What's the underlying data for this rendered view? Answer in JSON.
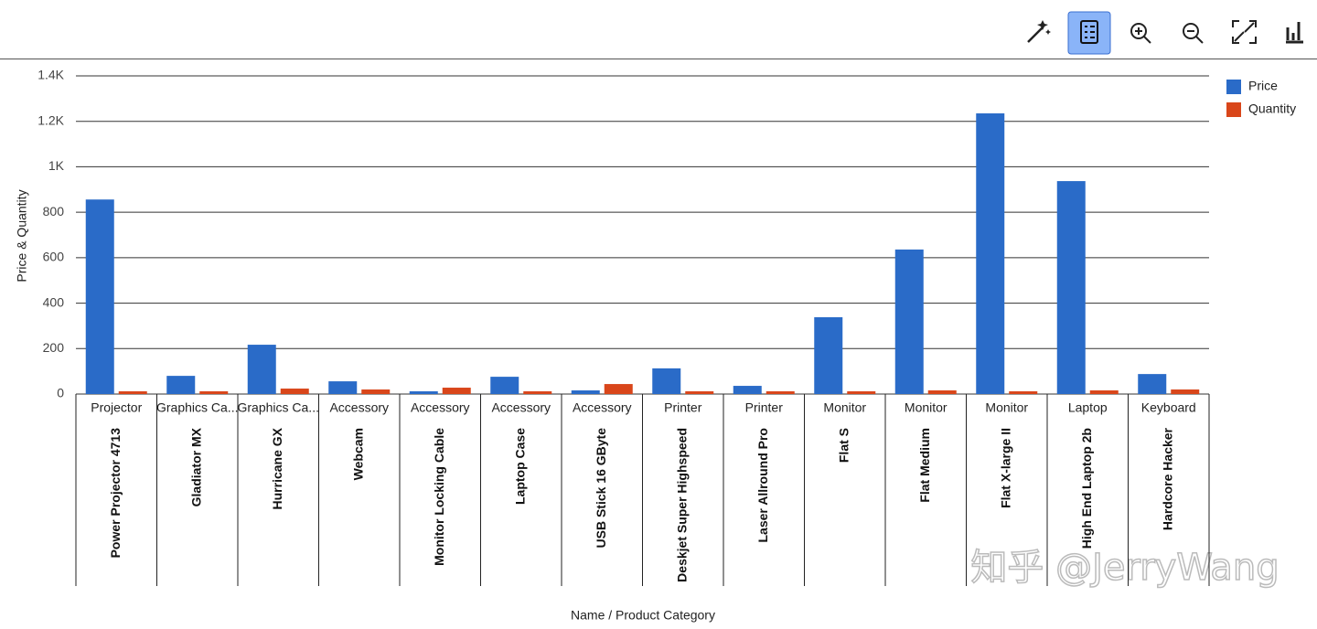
{
  "chart_data": {
    "type": "bar",
    "y_label": "Price & Quantity",
    "x_label": "Name / Product Category",
    "categories": [
      "Projector",
      "Graphics Ca...",
      "Graphics Ca...",
      "Accessory",
      "Accessory",
      "Accessory",
      "Accessory",
      "Printer",
      "Printer",
      "Monitor",
      "Monitor",
      "Monitor",
      "Laptop",
      "Keyboard"
    ],
    "names": [
      "Power Projector 4713",
      "Gladiator MX",
      "Hurricane GX",
      "Webcam",
      "Monitor Locking Cable",
      "Laptop Case",
      "USB Stick 16 GByte",
      "Deskjet Super Highspeed",
      "Laser Allround Pro",
      "Flat S",
      "Flat Medium",
      "Flat X-large II",
      "High End Laptop 2b",
      "Hardcore Hacker"
    ],
    "series": [
      {
        "name": "Price",
        "color": "#2a6bc8",
        "values": [
          856,
          80,
          217,
          56,
          12,
          76,
          16,
          113,
          36,
          338,
          636,
          1235,
          937,
          88
        ]
      },
      {
        "name": "Quantity",
        "color": "#d9461a",
        "values": [
          12,
          12,
          24,
          20,
          28,
          12,
          44,
          12,
          12,
          12,
          16,
          12,
          16,
          20
        ]
      }
    ],
    "ylim": [
      0,
      1400
    ],
    "yticks": [
      0,
      200,
      400,
      600,
      800,
      {
        "value": 1000,
        "label": "1K"
      },
      {
        "value": 1200,
        "label": "1.2K"
      },
      {
        "value": 1400,
        "label": "1.4K"
      }
    ],
    "grid": true,
    "legend": "right"
  },
  "watermark": "知乎 @JerryWang"
}
